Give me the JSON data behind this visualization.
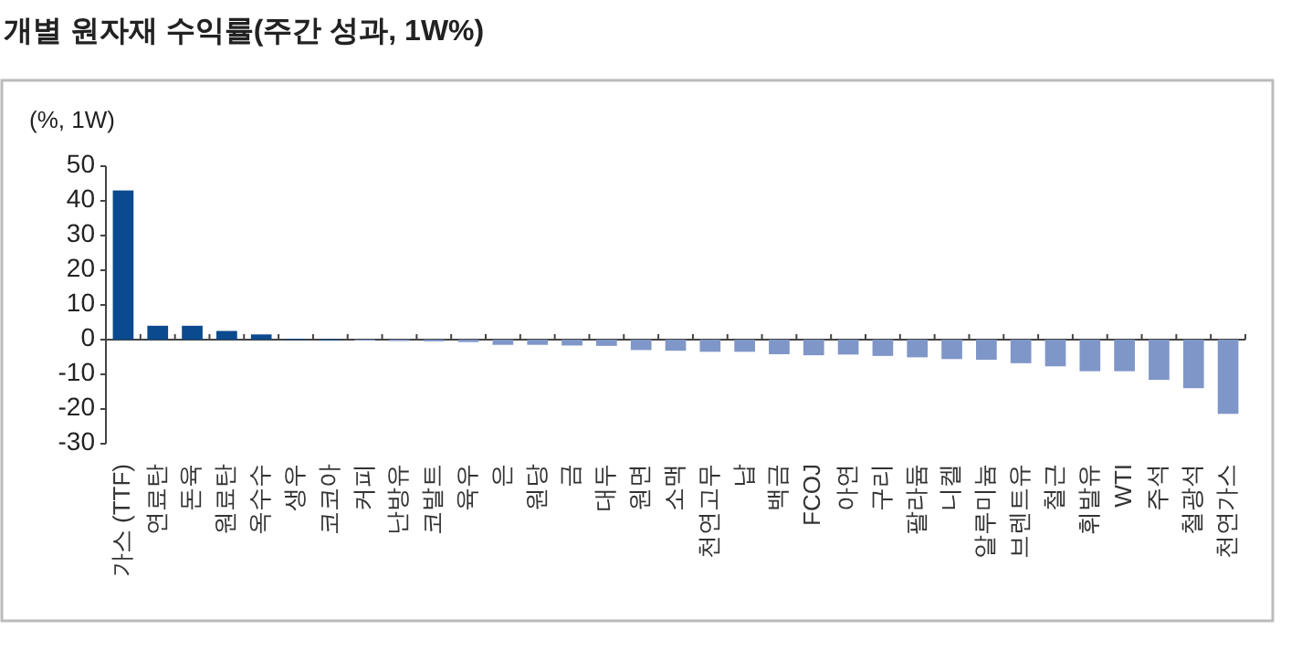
{
  "chart_data": {
    "type": "bar",
    "title": "개별 원자재 수익률(주간 성과, 1W%)",
    "ylabel": "(%, 1W)",
    "categories": [
      "가스 (TTF)",
      "연료탄",
      "돈육",
      "원료탄",
      "옥수수",
      "생우",
      "코코아",
      "커피",
      "난방유",
      "코발트",
      "육우",
      "은",
      "원당",
      "금",
      "대두",
      "원면",
      "소맥",
      "천연고무",
      "납",
      "백금",
      "FCOJ",
      "아연",
      "구리",
      "팔라듐",
      "니켈",
      "알루미늄",
      "브렌트유",
      "철근",
      "휘발유",
      "WTI",
      "주석",
      "철광석",
      "천연가스"
    ],
    "values": [
      43,
      4,
      4,
      2.5,
      1.5,
      0.2,
      0.1,
      -0.2,
      -0.4,
      -0.5,
      -0.7,
      -1.5,
      -1.5,
      -1.7,
      -1.8,
      -3,
      -3.2,
      -3.5,
      -3.5,
      -4.2,
      -4.5,
      -4.3,
      -4.7,
      -5.1,
      -5.6,
      -5.8,
      -6.8,
      -7.7,
      -9.1,
      -9.1,
      -11.6,
      -14,
      -21.4
    ],
    "colors": [
      "#0b4a8f",
      "#0b4a8f",
      "#0b4a8f",
      "#0b4a8f",
      "#0b4a8f",
      "#0b4a8f",
      "#0b4a8f",
      "#7f96c8",
      "#7f96c8",
      "#7f96c8",
      "#7f96c8",
      "#7f96c8",
      "#7f96c8",
      "#7f96c8",
      "#7f96c8",
      "#7f96c8",
      "#7f96c8",
      "#7f96c8",
      "#7f96c8",
      "#7f96c8",
      "#7f96c8",
      "#7f96c8",
      "#7f96c8",
      "#7f96c8",
      "#7f96c8",
      "#7f96c8",
      "#7f96c8",
      "#7f96c8",
      "#7f96c8",
      "#7f96c8",
      "#7f96c8",
      "#7f96c8",
      "#7f96c8"
    ],
    "ylim": [
      -30,
      50
    ],
    "yticks": [
      -30,
      -20,
      -10,
      0,
      10,
      20,
      30,
      40,
      50
    ]
  }
}
